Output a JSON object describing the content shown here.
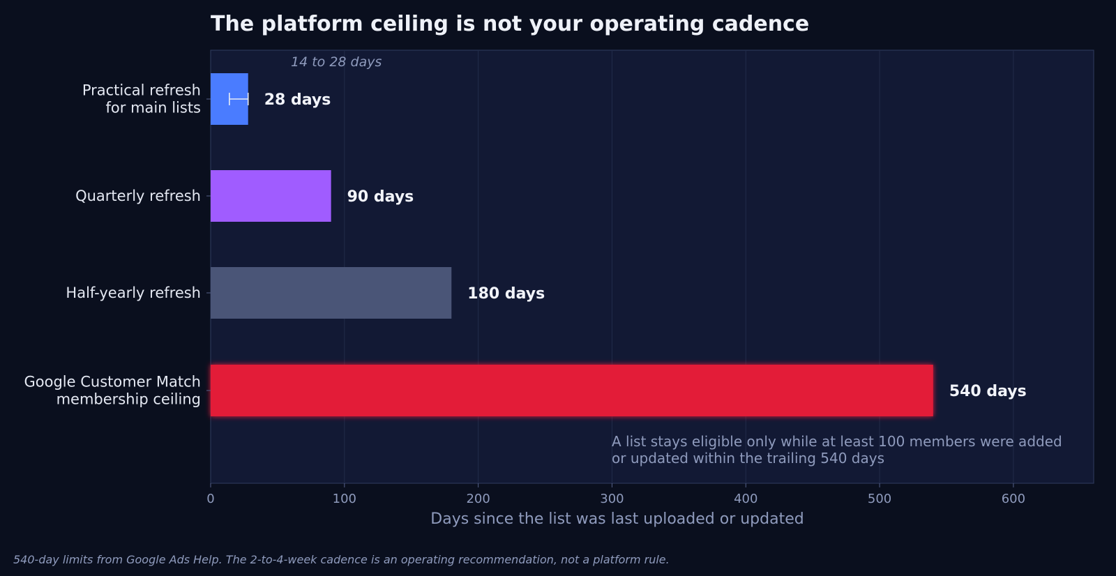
{
  "chart_data": {
    "type": "bar",
    "orientation": "horizontal",
    "title": "The platform ceiling is not your operating cadence",
    "xlabel": "Days since the list was last uploaded or updated",
    "ylabel": "",
    "xlim": [
      0,
      660
    ],
    "xticks": [
      0,
      100,
      200,
      300,
      400,
      500,
      600
    ],
    "grid": "vertical",
    "categories": [
      [
        "Practical refresh",
        "for main lists"
      ],
      [
        "Quarterly refresh"
      ],
      [
        "Half-yearly refresh"
      ],
      [
        "Google Customer Match",
        "membership ceiling"
      ]
    ],
    "values": [
      28,
      90,
      180,
      540
    ],
    "value_labels": [
      "28 days",
      "90 days",
      "180 days",
      "540 days"
    ],
    "colors": [
      "#4a7cff",
      "#a05cff",
      "#4a5577",
      "#e31b38"
    ],
    "range_annotation": {
      "category_index": 0,
      "low": 14,
      "high": 28,
      "label": "14 to 28 days"
    },
    "note": [
      "A list stays eligible only while at least 100 members were added",
      "or updated within the trailing 540 days"
    ],
    "footer": "540-day limits from Google Ads Help. The 2-to-4-week cadence is an operating recommendation, not a platform rule."
  }
}
